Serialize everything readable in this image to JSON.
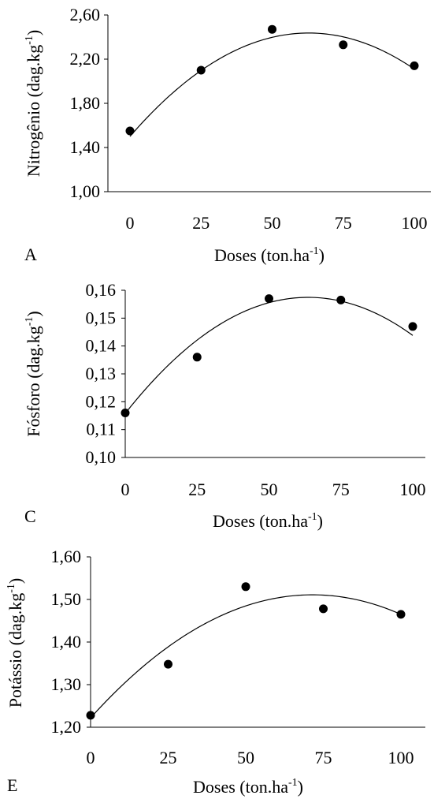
{
  "chart_data": [
    {
      "type": "scatter",
      "panel_label": "A",
      "xlabel": "Doses (ton.ha",
      "xlabel_sup": "-1",
      "xlabel_end": ")",
      "ylabel": "Nitrogênio (dag.kg",
      "ylabel_sup": "-1",
      "ylabel_end": ")",
      "xlim": [
        0,
        100
      ],
      "ylim": [
        1.0,
        2.6
      ],
      "xticks": [
        0,
        25,
        50,
        75,
        100
      ],
      "xtick_labels": [
        "0",
        "25",
        "50",
        "75",
        "100"
      ],
      "yticks": [
        1.0,
        1.4,
        1.8,
        2.2,
        2.6
      ],
      "ytick_labels": [
        "1,00",
        "1,40",
        "1,80",
        "2,20",
        "2,60"
      ],
      "grid": false,
      "series": [
        {
          "x": [
            0,
            25,
            50,
            75,
            100
          ],
          "y": [
            1.55,
            2.1,
            2.47,
            2.33,
            2.14
          ],
          "color": "#000000"
        }
      ],
      "trendline": {
        "type": "quadratic",
        "coefficients": [
          1.5,
          0.0298,
          -0.000237
        ],
        "x_range": [
          0,
          100
        ]
      }
    },
    {
      "type": "scatter",
      "panel_label": "C",
      "xlabel": "Doses (ton.ha",
      "xlabel_sup": "-1",
      "xlabel_end": ")",
      "ylabel": "Fósforo (dag.kg",
      "ylabel_sup": "-1",
      "ylabel_end": ")",
      "xlim": [
        0,
        100
      ],
      "ylim": [
        0.1,
        0.16
      ],
      "xticks": [
        0,
        25,
        50,
        75,
        100
      ],
      "xtick_labels": [
        "0",
        "25",
        "50",
        "75",
        "100"
      ],
      "yticks": [
        0.1,
        0.11,
        0.12,
        0.13,
        0.14,
        0.15,
        0.16
      ],
      "ytick_labels": [
        "0,10",
        "0,11",
        "0,12",
        "0,13",
        "0,14",
        "0,15",
        "0,16"
      ],
      "grid": false,
      "series": [
        {
          "x": [
            0,
            25,
            50,
            75,
            100
          ],
          "y": [
            0.116,
            0.136,
            0.157,
            0.1565,
            0.147
          ],
          "color": "#000000"
        }
      ],
      "trendline": {
        "type": "quadratic",
        "coefficients": [
          0.1158,
          0.00131,
          -1.03e-05
        ],
        "x_range": [
          0,
          100
        ]
      }
    },
    {
      "type": "scatter",
      "panel_label": "E",
      "xlabel": "Doses (ton.ha",
      "xlabel_sup": "-1",
      "xlabel_end": ")",
      "ylabel": "Potássio (dag.kg",
      "ylabel_sup": "-1",
      "ylabel_end": ")",
      "xlim": [
        0,
        100
      ],
      "ylim": [
        1.2,
        1.6
      ],
      "xticks": [
        0,
        25,
        50,
        75,
        100
      ],
      "xtick_labels": [
        "0",
        "25",
        "50",
        "75",
        "100"
      ],
      "yticks": [
        1.2,
        1.3,
        1.4,
        1.5,
        1.6
      ],
      "ytick_labels": [
        "1,20",
        "1,30",
        "1,40",
        "1,50",
        "1,60"
      ],
      "grid": false,
      "series": [
        {
          "x": [
            0,
            25,
            50,
            75,
            100
          ],
          "y": [
            1.228,
            1.348,
            1.53,
            1.478,
            1.465
          ],
          "color": "#000000"
        }
      ],
      "trendline": {
        "type": "quadratic",
        "coefficients": [
          1.222,
          0.00808,
          -5.65e-05
        ],
        "x_range": [
          0,
          100
        ]
      }
    }
  ]
}
